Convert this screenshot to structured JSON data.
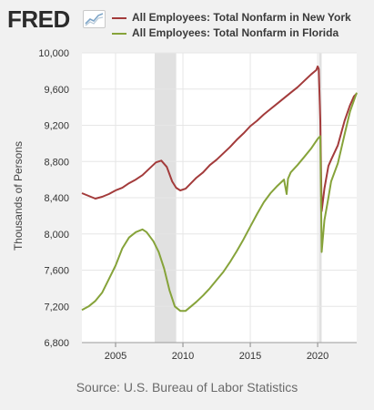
{
  "header": {
    "logo_text": "FRED",
    "logo_icon": "line-chart-icon"
  },
  "colors": {
    "new_york": "#a33b3b",
    "florida": "#86a33a",
    "recession": "#e1e1e1",
    "grid": "#e6e6e6",
    "plot_bg": "#ffffff"
  },
  "footer": {
    "source": "Source: U.S. Bureau of Labor Statistics"
  },
  "chart_data": {
    "type": "line",
    "title": "",
    "xlabel": "",
    "ylabel": "Thousands of Persons",
    "xlim": [
      2002.5,
      2022.9
    ],
    "ylim": [
      6800,
      10000
    ],
    "yticks": [
      6800,
      7200,
      7600,
      8000,
      8400,
      8800,
      9200,
      9600,
      10000
    ],
    "ytick_labels": [
      "6,800",
      "7,200",
      "7,600",
      "8,000",
      "8,400",
      "8,800",
      "9,200",
      "9,600",
      "10,000"
    ],
    "xticks": [
      2005,
      2010,
      2015,
      2020
    ],
    "xtick_labels": [
      "2005",
      "2010",
      "2015",
      "2020"
    ],
    "grid": true,
    "legend": "top",
    "recessions": [
      [
        2007.9,
        2009.5
      ],
      [
        2020.1,
        2020.3
      ]
    ],
    "series": [
      {
        "name": "All Employees: Total Nonfarm in New York",
        "color": "#a33b3b",
        "points": [
          [
            2002.5,
            8450
          ],
          [
            2003.0,
            8420
          ],
          [
            2003.5,
            8390
          ],
          [
            2004.0,
            8410
          ],
          [
            2004.5,
            8440
          ],
          [
            2005.0,
            8480
          ],
          [
            2005.5,
            8510
          ],
          [
            2006.0,
            8560
          ],
          [
            2006.5,
            8600
          ],
          [
            2007.0,
            8650
          ],
          [
            2007.5,
            8720
          ],
          [
            2008.0,
            8790
          ],
          [
            2008.4,
            8810
          ],
          [
            2008.8,
            8740
          ],
          [
            2009.2,
            8580
          ],
          [
            2009.5,
            8510
          ],
          [
            2009.8,
            8480
          ],
          [
            2010.2,
            8500
          ],
          [
            2010.6,
            8560
          ],
          [
            2011.0,
            8620
          ],
          [
            2011.5,
            8680
          ],
          [
            2012.0,
            8760
          ],
          [
            2012.5,
            8820
          ],
          [
            2013.0,
            8890
          ],
          [
            2013.5,
            8960
          ],
          [
            2014.0,
            9040
          ],
          [
            2014.5,
            9110
          ],
          [
            2015.0,
            9190
          ],
          [
            2015.5,
            9250
          ],
          [
            2016.0,
            9320
          ],
          [
            2016.5,
            9380
          ],
          [
            2017.0,
            9440
          ],
          [
            2017.5,
            9500
          ],
          [
            2018.0,
            9560
          ],
          [
            2018.5,
            9620
          ],
          [
            2019.0,
            9690
          ],
          [
            2019.5,
            9760
          ],
          [
            2019.9,
            9810
          ],
          [
            2020.0,
            9850
          ],
          [
            2020.08,
            9820
          ],
          [
            2020.2,
            9250
          ],
          [
            2020.3,
            8250
          ],
          [
            2020.5,
            8500
          ],
          [
            2020.8,
            8750
          ],
          [
            2021.0,
            8820
          ],
          [
            2021.5,
            8980
          ],
          [
            2022.0,
            9250
          ],
          [
            2022.4,
            9420
          ],
          [
            2022.7,
            9520
          ],
          [
            2022.9,
            9550
          ]
        ]
      },
      {
        "name": "All Employees: Total Nonfarm in Florida",
        "color": "#86a33a",
        "points": [
          [
            2002.5,
            7160
          ],
          [
            2003.0,
            7200
          ],
          [
            2003.5,
            7260
          ],
          [
            2004.0,
            7350
          ],
          [
            2004.5,
            7500
          ],
          [
            2005.0,
            7650
          ],
          [
            2005.5,
            7840
          ],
          [
            2006.0,
            7960
          ],
          [
            2006.5,
            8020
          ],
          [
            2007.0,
            8050
          ],
          [
            2007.3,
            8020
          ],
          [
            2007.8,
            7920
          ],
          [
            2008.2,
            7800
          ],
          [
            2008.6,
            7620
          ],
          [
            2009.0,
            7380
          ],
          [
            2009.4,
            7200
          ],
          [
            2009.8,
            7150
          ],
          [
            2010.2,
            7150
          ],
          [
            2010.6,
            7200
          ],
          [
            2011.0,
            7250
          ],
          [
            2011.5,
            7320
          ],
          [
            2012.0,
            7400
          ],
          [
            2012.5,
            7490
          ],
          [
            2013.0,
            7580
          ],
          [
            2013.5,
            7690
          ],
          [
            2014.0,
            7810
          ],
          [
            2014.5,
            7940
          ],
          [
            2015.0,
            8080
          ],
          [
            2015.5,
            8220
          ],
          [
            2016.0,
            8350
          ],
          [
            2016.5,
            8450
          ],
          [
            2017.0,
            8530
          ],
          [
            2017.5,
            8600
          ],
          [
            2017.7,
            8440
          ],
          [
            2017.8,
            8610
          ],
          [
            2018.0,
            8680
          ],
          [
            2018.5,
            8760
          ],
          [
            2019.0,
            8850
          ],
          [
            2019.5,
            8940
          ],
          [
            2020.0,
            9050
          ],
          [
            2020.2,
            9080
          ],
          [
            2020.3,
            7800
          ],
          [
            2020.5,
            8150
          ],
          [
            2020.8,
            8400
          ],
          [
            2021.0,
            8580
          ],
          [
            2021.5,
            8780
          ],
          [
            2022.0,
            9100
          ],
          [
            2022.4,
            9350
          ],
          [
            2022.9,
            9560
          ]
        ]
      }
    ],
    "source_note": "Source: U.S. Bureau of Labor Statistics"
  }
}
